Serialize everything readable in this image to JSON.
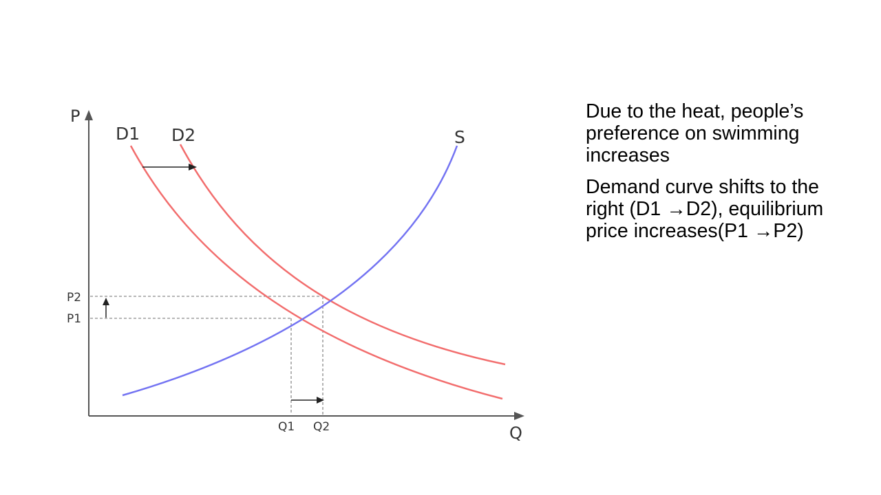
{
  "diagram": {
    "axes": {
      "y_label": "P",
      "x_label": "Q"
    },
    "curves": {
      "d1": "D1",
      "d2": "D2",
      "s": "S"
    },
    "ticks": {
      "p1": "P1",
      "p2": "P2",
      "q1": "Q1",
      "q2": "Q2"
    },
    "colors": {
      "demand": "#f26d6d",
      "supply": "#7373f2",
      "axis": "#555555",
      "guide": "#8a8a8a",
      "arrow": "#222222"
    }
  },
  "notes": [
    "Due to the heat, people’s preference on swimming increases",
    "Demand curve shifts to the right (D1 →D2), equilibrium price increases(P1 →P2)"
  ]
}
